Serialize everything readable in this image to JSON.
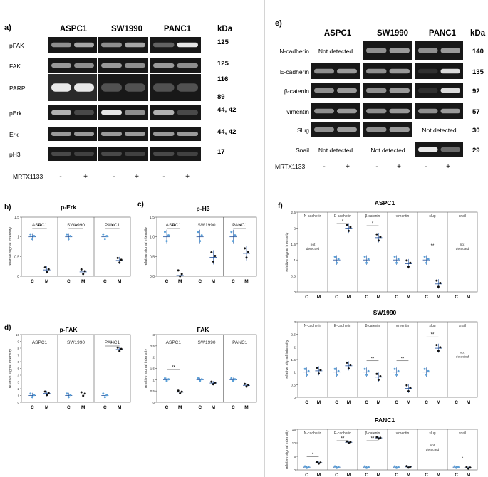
{
  "panel_a": {
    "letter": "a)",
    "columns": [
      "ASPC1",
      "SW1990",
      "PANC1"
    ],
    "kda_label": "kDa",
    "rows": [
      {
        "label": "pFAK",
        "kda": [
          "125"
        ]
      },
      {
        "label": "FAK",
        "kda": [
          "125"
        ]
      },
      {
        "label": "PARP",
        "kda": [
          "116",
          "89"
        ]
      },
      {
        "label": "pErk",
        "kda": [
          "44, 42"
        ]
      },
      {
        "label": "Erk",
        "kda": [
          "44, 42"
        ]
      },
      {
        "label": "pH3",
        "kda": [
          "17"
        ]
      }
    ],
    "treatment_label": "MRTX1133",
    "lane_signs": [
      "-",
      "+",
      "-",
      "+",
      "-",
      "+"
    ]
  },
  "panel_e": {
    "letter": "e)",
    "columns": [
      "ASPC1",
      "SW1990",
      "PANC1"
    ],
    "kda_label": "kDa",
    "rows": [
      {
        "label": "N-cadherin",
        "kda": "140",
        "note": "Not detected",
        "note_col": 0
      },
      {
        "label": "E-cadherin",
        "kda": "135"
      },
      {
        "label": "β-catenin",
        "kda": "92"
      },
      {
        "label": "vimentin",
        "kda": "57"
      },
      {
        "label": "Slug",
        "kda": "30",
        "note": "Not detected",
        "note_col": 2
      },
      {
        "label": "Snail",
        "kda": "29",
        "note2": [
          "Not detected",
          "Not detected"
        ]
      }
    ],
    "treatment_label": "MRTX1133",
    "lane_signs": [
      "-",
      "+",
      "-",
      "+",
      "-",
      "+"
    ]
  },
  "panel_b": {
    "letter": "b)",
    "title": "p-Erk",
    "groups": [
      "ASPC1",
      "SW1990",
      "PANC1"
    ],
    "ylabel": "relative signal intensity",
    "yticks": [
      "0",
      "0.5",
      "1",
      "1.5"
    ],
    "xticks": [
      "C",
      "M"
    ],
    "sig": [
      "**",
      "**",
      "*"
    ]
  },
  "panel_c": {
    "letter": "c)",
    "title": "p-H3",
    "groups": [
      "ASPC1",
      "SW1990",
      "PANC1"
    ],
    "ylabel": "relative signal intensity",
    "yticks": [
      "0.0",
      "0.5",
      "1.0",
      "1.5"
    ],
    "xticks": [
      "C",
      "M"
    ],
    "sig": [
      "**",
      "",
      "**"
    ]
  },
  "panel_d": {
    "letter": "d)",
    "title": "p-FAK",
    "title2": "FAK",
    "groups": [
      "ASPC1",
      "SW1990",
      "PANC1"
    ],
    "ylabel": "relative signal intensity",
    "yticks": [
      "0",
      "1",
      "2",
      "3",
      "4",
      "5",
      "6",
      "7",
      "8",
      "9",
      "10"
    ],
    "yticks2": [
      "0",
      "0.5",
      "1",
      "1.5",
      "2",
      "2.5",
      "3"
    ],
    "xticks": [
      "C",
      "M"
    ],
    "sig": [
      "",
      "",
      "**"
    ],
    "sig2": [
      "**",
      "",
      ""
    ]
  },
  "panel_f": {
    "letter": "f)",
    "groups": [
      "N-cadherin",
      "E-cadherin",
      "β-catenin",
      "vimentin",
      "slug",
      "snail"
    ],
    "ylabel": "relative signal intensity",
    "xticks": [
      "C",
      "M"
    ],
    "not_detected": "not\ndetected",
    "subpanels": [
      {
        "title": "ASPC1",
        "yticks": [
          "0",
          "0.5",
          "1",
          "1.5",
          "2",
          "2.5"
        ]
      },
      {
        "title": "SW1990",
        "yticks": [
          "0",
          "0.5",
          "1",
          "1.5",
          "2",
          "2.5",
          "3"
        ]
      },
      {
        "title": "PANC1",
        "yticks": [
          "0",
          "5",
          "10",
          "15"
        ]
      }
    ]
  },
  "chart_data": [
    {
      "type": "scatter",
      "title": "p-Erk",
      "ylabel": "relative signal intensity",
      "ylim": [
        0,
        1.5
      ],
      "categories": [
        "C",
        "M"
      ],
      "series": [
        {
          "name": "ASPC1",
          "values": [
            1.0,
            0.16
          ]
        },
        {
          "name": "SW1990",
          "values": [
            1.0,
            0.11
          ]
        },
        {
          "name": "PANC1",
          "values": [
            1.0,
            0.4
          ]
        }
      ]
    },
    {
      "type": "scatter",
      "title": "p-H3",
      "ylabel": "relative signal intensity",
      "ylim": [
        0,
        1.5
      ],
      "categories": [
        "C",
        "M"
      ],
      "series": [
        {
          "name": "ASPC1",
          "values": [
            1.0,
            0.02
          ]
        },
        {
          "name": "SW1990",
          "values": [
            1.0,
            0.48
          ]
        },
        {
          "name": "PANC1",
          "values": [
            1.0,
            0.58
          ]
        }
      ]
    },
    {
      "type": "scatter",
      "title": "p-FAK",
      "ylabel": "relative signal intensity",
      "ylim": [
        0,
        10
      ],
      "categories": [
        "C",
        "M"
      ],
      "series": [
        {
          "name": "ASPC1",
          "values": [
            1.0,
            1.3
          ]
        },
        {
          "name": "SW1990",
          "values": [
            1.0,
            1.2
          ]
        },
        {
          "name": "PANC1",
          "values": [
            1.0,
            7.8
          ]
        }
      ]
    },
    {
      "type": "scatter",
      "title": "FAK",
      "ylabel": "relative signal intensity",
      "ylim": [
        0,
        3
      ],
      "categories": [
        "C",
        "M"
      ],
      "series": [
        {
          "name": "ASPC1",
          "values": [
            1.0,
            0.45
          ]
        },
        {
          "name": "SW1990",
          "values": [
            1.0,
            0.85
          ]
        },
        {
          "name": "PANC1",
          "values": [
            1.0,
            0.75
          ]
        }
      ]
    },
    {
      "type": "scatter",
      "title": "ASPC1",
      "ylabel": "relative signal intensity",
      "ylim": [
        0,
        2.5
      ],
      "categories": [
        "C",
        "M"
      ],
      "series": [
        {
          "name": "E-cadherin",
          "values": [
            1.0,
            2.0
          ]
        },
        {
          "name": "β-catenin",
          "values": [
            1.0,
            1.7
          ]
        },
        {
          "name": "vimentin",
          "values": [
            1.0,
            0.88
          ]
        },
        {
          "name": "slug",
          "values": [
            1.0,
            0.25
          ]
        }
      ]
    },
    {
      "type": "scatter",
      "title": "SW1990",
      "ylabel": "relative signal intensity",
      "ylim": [
        0,
        3
      ],
      "categories": [
        "C",
        "M"
      ],
      "series": [
        {
          "name": "N-cadherin",
          "values": [
            1.0,
            1.05
          ]
        },
        {
          "name": "E-cadherin",
          "values": [
            1.0,
            1.25
          ]
        },
        {
          "name": "β-catenin",
          "values": [
            1.0,
            0.8
          ]
        },
        {
          "name": "vimentin",
          "values": [
            1.0,
            0.35
          ]
        },
        {
          "name": "slug",
          "values": [
            1.0,
            1.95
          ]
        }
      ]
    },
    {
      "type": "scatter",
      "title": "PANC1",
      "ylabel": "relative signal intensity",
      "ylim": [
        0,
        15
      ],
      "categories": [
        "C",
        "M"
      ],
      "series": [
        {
          "name": "N-cadherin",
          "values": [
            1.0,
            2.6
          ]
        },
        {
          "name": "E-cadherin",
          "values": [
            1.0,
            10.2
          ]
        },
        {
          "name": "β-catenin",
          "values": [
            1.0,
            11.8
          ]
        },
        {
          "name": "vimentin",
          "values": [
            1.0,
            1.1
          ]
        },
        {
          "name": "snail",
          "values": [
            1.0,
            0.75
          ]
        }
      ]
    }
  ]
}
